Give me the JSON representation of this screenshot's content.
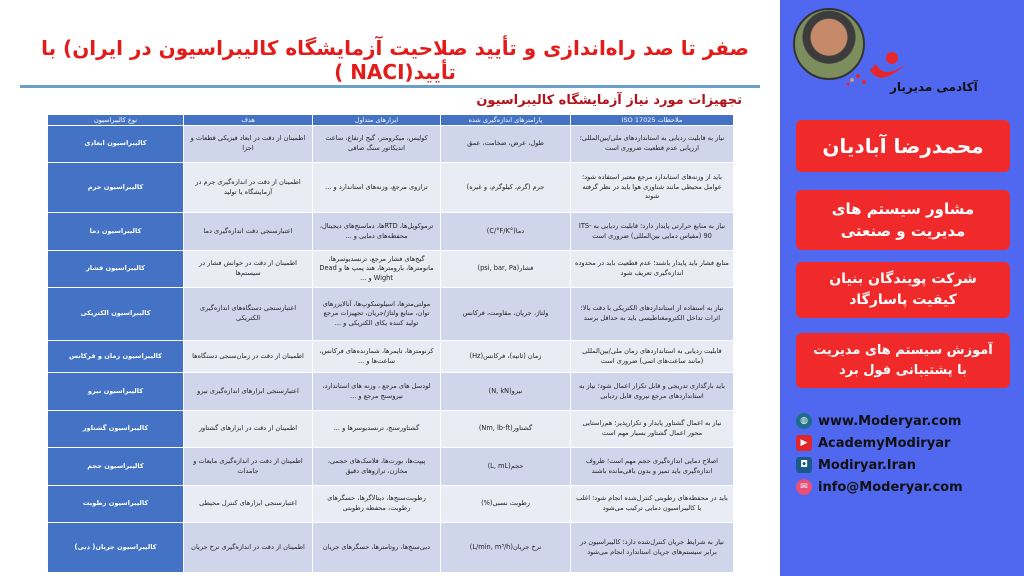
{
  "header": {
    "title": "صفر تا صد راه‌اندازی و تأیید صلاحیت آزمایشگاه کالیبراسیون در ایران) با تأیید(NACI )",
    "subtitle": "تجهیزات مورد نیاز آزمایشگاه کالیبراسیون"
  },
  "table": {
    "headers": [
      "نوع کالیبراسیون",
      "هدف",
      "ابزارهای متداول",
      "پارامترهای اندازه‌گیری شده",
      "ملاحظات ISO 17025"
    ],
    "rows": [
      [
        "کالیبراسیون ابعادی",
        "اطمینان از دقت در ابعاد فیزیکی قطعات و اجزا",
        "کولیس، میکرومتر، گیج ارتفاع، ساعت اندیکاتور سنگ صافی",
        "طول، عرض، ضخامت، عمق",
        "نیاز به قابلیت ردیابی به استانداردهای ملی/بین‌المللی؛ ارزیابی عدم قطعیت ضروری است"
      ],
      [
        "کالیبراسیون جرم",
        "اطمینان از دقت در اندازه‌گیری جرم در آزمایشگاه یا تولید",
        "ترازوی مرجع، وزنه‌های استاندارد و ...",
        "جرم (گرم، کیلوگرم، و غیره)",
        "باید از وزنه‌های استاندارد مرجع معتبر استفاده شود؛ عوامل محیطی مانند شناوری هوا باید در نظر گرفته شوند"
      ],
      [
        "کالیبراسیون دما",
        "اعتبارسنجی دقت اندازه‌گیری دما",
        "ترموکوپل‌ها، RTDها، دماسنج‌های دیجیتال، محفظه‌های دمایی و ...",
        "دما(°C/°F/K)",
        "نیاز به منابع حرارتی پایدار دارد؛ قابلیت ردیابی به ITS-90 (مقیاس دمایی بین‌المللی) ضروری است"
      ],
      [
        "کالیبراسیون فشار",
        "اطمینان از دقت در خوانش فشار در سیستم‌ها",
        "گیج‌های فشار مرجع، ترنسدیوسرها، مانومترها، بارومترها، هند پمپ ها و Dead Wight و ...",
        "فشار(psi, bar, Pa)",
        "منابع فشار باید پایدار باشند؛ عدم قطعیت باید در محدوده اندازه‌گیری تعریف شود"
      ],
      [
        "کالیبراسیون الکتریکی",
        "اعتبارسنجی دستگاه‌های اندازه‌گیری الکتریکی",
        "مولتی‌مترها، اسیلوسکوپ‌ها، آنالایزرهای توان، منابع ولتاژ/جریان، تجهیزات مرجع تولید کننده یکای الکتریکی و ...",
        "ولتاژ، جریان، مقاومت، فرکانس",
        "نیاز به استفاده از استانداردهای الکتریکی با دقت بالا؛ اثرات تداخل الکترومغناطیسی باید به حداقل برسد"
      ],
      [
        "کالیبراسیون زمان و فرکانس",
        "اطمینان از دقت در زمان‌سنجی دستگاه‌ها",
        "کرنومترها، تایمرها، شمارنده‌های فرکانس، ساعت‌ها و ...",
        "زمان (ثانیه)، فرکانس(Hz)",
        "قابلیت ردیابی به استانداردهای زمان ملی/بین‌المللی (مانند ساعت‌های اتمی) ضروری است"
      ],
      [
        "کالیبراسیون نیرو",
        "اعتبارسنجی ابزارهای اندازه‌گیری نیرو",
        "لودسل های مرجع ، وزنه های استاندارد، نیروسنج مرجع و ...",
        "نیرو(N, kN)",
        "باید بارگذاری تدریجی و قابل تکرار اعمال شود؛ نیاز به استانداردهای مرجع نیروی قابل ردیابی"
      ],
      [
        "کالیبراسیون گشتاور",
        "اطمینان از دقت در ابزارهای گشتاور",
        "گشتاورسنج، ترنسدیوسرها و ...",
        "گشتاور(Nm, lb-ft)",
        "نیاز به اعمال گشتاور پایدار و تکرارپذیر؛ هم‌راستایی محور اعمال گشتاور بسیار مهم است"
      ],
      [
        "کالیبراسیون حجم",
        "اطمینان از دقت در اندازه‌گیری مایعات و جامدات",
        "پیپت‌ها، بورت‌ها، فلاسک‌های حجمی، مخازن، ترازوهای دقیق",
        "حجم(L, mL)",
        "اصلاح دمایی اندازه‌گیری حجم مهم است؛ ظروف اندازه‌گیری باید تمیز و بدون باقی‌مانده باشند"
      ],
      [
        "کالیبراسیون رطوبت",
        "اعتبارسنجی ابزارهای کنترل محیطی",
        "رطوبت‌سنج‌ها، دیتالاگرها، حسگرهای رطوبت، محفظه رطوبتی",
        "رطوبت نسبی(%)",
        "باید در محفظه‌های رطوبتی کنترل‌شده انجام شود؛ اغلب با کالیبراسیون دمایی ترکیب می‌شود"
      ],
      [
        "کالیبراسیون جریان( دبی)",
        "اطمینان از دقت در اندازه‌گیری نرخ جریان",
        "دبی‌سنج‌ها، روتامترها، حسگرهای جریان",
        "نرخ جریان(L/min, m³/h)",
        "نیاز به شرایط جریان کنترل‌شده دارد؛ کالیبراسیون در برابر سیستم‌های جریان استاندارد انجام می‌شود"
      ]
    ]
  },
  "sidebar": {
    "brand": "آکادمی مدیریار",
    "name": "محمدرضا آبادیان",
    "role": "مشاور سیستم های مدیریت و صنعتی",
    "company": "شرکت پویندگان بنیان کیفیت پاسارگاد",
    "training": "آموزش سیستم های مدیریت با پشتیبانی فول برد",
    "contacts": [
      {
        "icon": "globe-icon",
        "text": "www.Moderyar.com"
      },
      {
        "icon": "youtube-icon",
        "text": "AcademyModiryar"
      },
      {
        "icon": "instagram-icon",
        "text": "Modiryar.Iran"
      },
      {
        "icon": "email-icon",
        "text": "info@Moderyar.com"
      }
    ]
  },
  "colors": {
    "title": "#e21b1b",
    "sidebar": "#5068f0",
    "redbox": "#f02a2a",
    "table_header": "#4472c4"
  }
}
